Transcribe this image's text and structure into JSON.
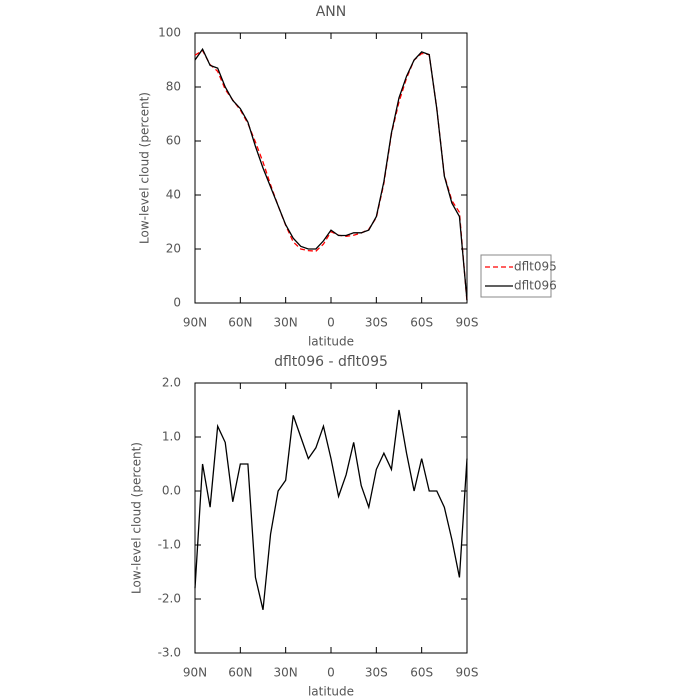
{
  "chart_data": [
    {
      "type": "line",
      "title": "ANN",
      "xlabel": "latitude",
      "ylabel": "Low-level cloud (percent)",
      "x": [
        90,
        85,
        80,
        75,
        70,
        65,
        60,
        55,
        50,
        45,
        40,
        35,
        30,
        25,
        20,
        15,
        10,
        5,
        0,
        -5,
        -10,
        -15,
        -20,
        -25,
        -30,
        -35,
        -40,
        -45,
        -50,
        -55,
        -60,
        -65,
        -70,
        -75,
        -80,
        -85,
        -90
      ],
      "series": [
        {
          "name": "dflt095",
          "color": "#ff0000",
          "dash": "dashed",
          "values": [
            91.8,
            93.5,
            88.3,
            85.8,
            79.1,
            75.2,
            71.5,
            66.5,
            59.6,
            52.2,
            43.8,
            36.0,
            28.8,
            22.6,
            20.0,
            19.4,
            19.2,
            21.8,
            26.4,
            25.1,
            24.7,
            25.1,
            25.9,
            27.3,
            31.6,
            44.3,
            62.6,
            74.5,
            83.3,
            90.0,
            92.4,
            92.0,
            72.0,
            47.3,
            37.9,
            33.6,
            0.4
          ]
        },
        {
          "name": "dflt096",
          "color": "#000000",
          "values": [
            90,
            94,
            88,
            87,
            80,
            75,
            72,
            67,
            58,
            50,
            43,
            36,
            29,
            24,
            21,
            20,
            20,
            23,
            27,
            25,
            25,
            26,
            26,
            27,
            32,
            45,
            63,
            76,
            84,
            90,
            93,
            92,
            72,
            47,
            37,
            32,
            1
          ]
        }
      ],
      "xlim": [
        90,
        -90
      ],
      "xticks": [
        {
          "value": 90,
          "label": "90N"
        },
        {
          "value": 60,
          "label": "60N"
        },
        {
          "value": 30,
          "label": "30N"
        },
        0,
        {
          "value": -30,
          "label": "30S"
        },
        {
          "value": -60,
          "label": "60S"
        },
        {
          "value": -90,
          "label": "90S"
        }
      ],
      "ylim": [
        0,
        100
      ],
      "yticks": [
        0,
        20,
        40,
        60,
        80,
        100
      ],
      "legend": "right"
    },
    {
      "type": "line",
      "title": "dflt096 - dflt095",
      "xlabel": "latitude",
      "ylabel": "Low-level cloud (percent)",
      "x": [
        90,
        85,
        80,
        75,
        70,
        65,
        60,
        55,
        50,
        45,
        40,
        35,
        30,
        25,
        20,
        15,
        10,
        5,
        0,
        -5,
        -10,
        -15,
        -20,
        -25,
        -30,
        -35,
        -40,
        -45,
        -50,
        -55,
        -60,
        -65,
        -70,
        -75,
        -80,
        -85,
        -90
      ],
      "values": [
        -1.8,
        0.5,
        -0.3,
        1.2,
        0.9,
        -0.2,
        0.5,
        0.5,
        -1.6,
        -2.2,
        -0.8,
        0.0,
        0.2,
        1.4,
        1.0,
        0.6,
        0.8,
        1.2,
        0.6,
        -0.1,
        0.3,
        0.9,
        0.1,
        -0.3,
        0.4,
        0.7,
        0.4,
        1.5,
        0.7,
        0.0,
        0.6,
        0.0,
        0.0,
        -0.3,
        -0.9,
        -1.6,
        0.6
      ],
      "color": "#000000",
      "xlim": [
        90,
        -90
      ],
      "xticks": [
        {
          "value": 90,
          "label": "90N"
        },
        {
          "value": 60,
          "label": "60N"
        },
        {
          "value": 30,
          "label": "30N"
        },
        0,
        {
          "value": -30,
          "label": "30S"
        },
        {
          "value": -60,
          "label": "60S"
        },
        {
          "value": -90,
          "label": "90S"
        }
      ],
      "ylim": [
        -3,
        2
      ],
      "yticks": [
        {
          "value": -3,
          "label": "-3.0"
        },
        {
          "value": -2,
          "label": "-2.0"
        },
        {
          "value": -1,
          "label": "-1.0"
        },
        {
          "value": 0,
          "label": "0.0"
        },
        {
          "value": 1,
          "label": "1.0"
        },
        {
          "value": 2,
          "label": "2.0"
        }
      ]
    }
  ]
}
